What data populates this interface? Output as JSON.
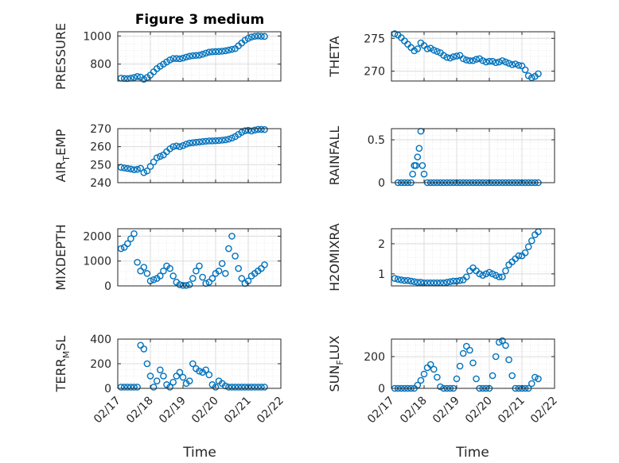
{
  "figure": {
    "title": "Figure 3 medium"
  },
  "colors": {
    "marker": "#0072BD",
    "grid": "#dcdcdc",
    "axis": "#262626"
  },
  "x_ticks": [
    "02/17",
    "02/18",
    "02/19",
    "02/20",
    "02/21",
    "02/22"
  ],
  "x_label": "Time",
  "chart_data": [
    {
      "type": "scatter",
      "marker": "circle",
      "ylabel": "PRESSURE",
      "ylim": [
        680,
        1030
      ],
      "yticks": [
        800,
        1000
      ],
      "xlim": [
        0,
        5
      ],
      "grid": true,
      "x": [
        0.1,
        0.2,
        0.3,
        0.4,
        0.5,
        0.6,
        0.7,
        0.8,
        0.9,
        1.0,
        1.1,
        1.2,
        1.3,
        1.4,
        1.5,
        1.6,
        1.7,
        1.8,
        1.9,
        2.0,
        2.1,
        2.2,
        2.3,
        2.4,
        2.5,
        2.6,
        2.7,
        2.8,
        2.9,
        3.0,
        3.1,
        3.2,
        3.3,
        3.4,
        3.5,
        3.6,
        3.7,
        3.8,
        3.9,
        4.0,
        4.1,
        4.2,
        4.3,
        4.4,
        4.5
      ],
      "y": [
        700,
        698,
        697,
        700,
        705,
        712,
        708,
        692,
        705,
        722,
        745,
        768,
        785,
        800,
        815,
        830,
        840,
        840,
        838,
        843,
        850,
        856,
        860,
        862,
        864,
        870,
        878,
        885,
        888,
        889,
        890,
        892,
        895,
        900,
        905,
        910,
        930,
        950,
        970,
        983,
        993,
        998,
        1000,
        998,
        997
      ]
    },
    {
      "type": "scatter",
      "marker": "circle",
      "ylabel": "THETA",
      "ylim": [
        268.5,
        276
      ],
      "yticks": [
        270,
        275
      ],
      "xlim": [
        0,
        5
      ],
      "grid": true,
      "x": [
        0.1,
        0.2,
        0.3,
        0.4,
        0.5,
        0.6,
        0.7,
        0.8,
        0.9,
        1.0,
        1.1,
        1.2,
        1.3,
        1.4,
        1.5,
        1.6,
        1.7,
        1.8,
        1.9,
        2.0,
        2.1,
        2.2,
        2.3,
        2.4,
        2.5,
        2.6,
        2.7,
        2.8,
        2.9,
        3.0,
        3.1,
        3.2,
        3.3,
        3.4,
        3.5,
        3.6,
        3.7,
        3.8,
        3.9,
        4.0,
        4.1,
        4.2,
        4.3,
        4.4,
        4.5
      ],
      "y": [
        275.7,
        275.5,
        275.1,
        274.6,
        274.1,
        273.6,
        273.1,
        273.4,
        274.3,
        273.9,
        273.4,
        273.5,
        273.2,
        273.0,
        272.8,
        272.4,
        272.1,
        272.0,
        272.2,
        272.3,
        272.4,
        271.9,
        271.7,
        271.6,
        271.6,
        271.8,
        271.9,
        271.6,
        271.4,
        271.5,
        271.5,
        271.3,
        271.4,
        271.6,
        271.4,
        271.2,
        271.0,
        271.1,
        270.9,
        270.8,
        270.2,
        269.3,
        269.0,
        269.2,
        269.6
      ]
    },
    {
      "type": "scatter",
      "marker": "circle",
      "ylabel": "AIR_TEMP",
      "ylim": [
        240,
        270
      ],
      "yticks": [
        240,
        250,
        260,
        270
      ],
      "xlim": [
        0,
        5
      ],
      "grid": true,
      "x": [
        0.1,
        0.2,
        0.3,
        0.4,
        0.5,
        0.6,
        0.7,
        0.8,
        0.9,
        1.0,
        1.1,
        1.2,
        1.3,
        1.4,
        1.5,
        1.6,
        1.7,
        1.8,
        1.9,
        2.0,
        2.1,
        2.2,
        2.3,
        2.4,
        2.5,
        2.6,
        2.7,
        2.8,
        2.9,
        3.0,
        3.1,
        3.2,
        3.3,
        3.4,
        3.5,
        3.6,
        3.7,
        3.8,
        3.9,
        4.0,
        4.1,
        4.2,
        4.3,
        4.4,
        4.5
      ],
      "y": [
        248.5,
        248.2,
        247.9,
        247.6,
        247.2,
        247.4,
        248.0,
        245.6,
        246.5,
        249.0,
        251.5,
        253.8,
        254.6,
        255.4,
        257.2,
        258.8,
        260.0,
        260.4,
        260.0,
        260.6,
        261.4,
        262.0,
        262.2,
        262.4,
        262.6,
        262.8,
        263.0,
        263.2,
        263.2,
        263.3,
        263.4,
        263.6,
        263.8,
        264.2,
        264.8,
        265.6,
        266.8,
        268.0,
        268.8,
        269.1,
        268.7,
        269.2,
        269.6,
        269.6,
        269.5
      ]
    },
    {
      "type": "scatter",
      "marker": "circle",
      "ylabel": "RAINFALL",
      "ylim": [
        0,
        0.63
      ],
      "yticks": [
        0,
        0.5
      ],
      "xlim": [
        0,
        5
      ],
      "grid": true,
      "x": [
        0.2,
        0.3,
        0.4,
        0.5,
        0.6,
        0.65,
        0.7,
        0.75,
        0.8,
        0.85,
        0.9,
        0.95,
        1.0,
        1.1,
        1.2,
        1.3,
        1.4,
        1.5,
        1.6,
        1.7,
        1.8,
        1.9,
        2.0,
        2.1,
        2.2,
        2.3,
        2.4,
        2.5,
        2.6,
        2.7,
        2.8,
        2.9,
        3.0,
        3.1,
        3.2,
        3.3,
        3.4,
        3.5,
        3.6,
        3.7,
        3.8,
        3.9,
        4.0,
        4.1,
        4.2,
        4.3,
        4.4,
        4.5
      ],
      "y": [
        0,
        0,
        0,
        0,
        0,
        0.1,
        0.2,
        0.2,
        0.3,
        0.4,
        0.6,
        0.2,
        0.1,
        0,
        0,
        0,
        0,
        0,
        0,
        0,
        0,
        0,
        0,
        0,
        0,
        0,
        0,
        0,
        0,
        0,
        0,
        0,
        0,
        0,
        0,
        0,
        0,
        0,
        0,
        0,
        0,
        0,
        0,
        0,
        0,
        0,
        0,
        0
      ]
    },
    {
      "type": "scatter",
      "marker": "circle",
      "ylabel": "MIXDEPTH",
      "ylim": [
        0,
        2300
      ],
      "yticks": [
        0,
        1000,
        2000
      ],
      "xlim": [
        0,
        5
      ],
      "grid": true,
      "x": [
        0.1,
        0.2,
        0.3,
        0.4,
        0.5,
        0.6,
        0.7,
        0.8,
        0.9,
        1.0,
        1.1,
        1.2,
        1.3,
        1.4,
        1.5,
        1.6,
        1.7,
        1.8,
        1.9,
        2.0,
        2.1,
        2.2,
        2.3,
        2.4,
        2.5,
        2.6,
        2.7,
        2.8,
        2.9,
        3.0,
        3.1,
        3.2,
        3.3,
        3.4,
        3.5,
        3.6,
        3.7,
        3.8,
        3.9,
        4.0,
        4.1,
        4.2,
        4.3,
        4.4,
        4.5
      ],
      "y": [
        1500,
        1550,
        1700,
        1900,
        2100,
        950,
        600,
        750,
        500,
        200,
        250,
        300,
        400,
        600,
        800,
        700,
        400,
        150,
        50,
        20,
        20,
        50,
        300,
        600,
        800,
        350,
        100,
        150,
        300,
        500,
        600,
        900,
        500,
        1500,
        2000,
        1200,
        700,
        300,
        100,
        200,
        400,
        500,
        600,
        700,
        850
      ]
    },
    {
      "type": "scatter",
      "marker": "circle",
      "ylabel": "H2OMIXRA",
      "ylim": [
        0.6,
        2.5
      ],
      "yticks": [
        1,
        2
      ],
      "xlim": [
        0,
        5
      ],
      "grid": true,
      "x": [
        0.1,
        0.2,
        0.3,
        0.4,
        0.5,
        0.6,
        0.7,
        0.8,
        0.9,
        1.0,
        1.1,
        1.2,
        1.3,
        1.4,
        1.5,
        1.6,
        1.7,
        1.8,
        1.9,
        2.0,
        2.1,
        2.2,
        2.3,
        2.4,
        2.5,
        2.6,
        2.7,
        2.8,
        2.9,
        3.0,
        3.1,
        3.2,
        3.3,
        3.4,
        3.5,
        3.6,
        3.7,
        3.8,
        3.9,
        4.0,
        4.1,
        4.2,
        4.3,
        4.4,
        4.5
      ],
      "y": [
        0.85,
        0.82,
        0.8,
        0.78,
        0.78,
        0.76,
        0.74,
        0.72,
        0.72,
        0.7,
        0.7,
        0.7,
        0.7,
        0.7,
        0.7,
        0.7,
        0.72,
        0.74,
        0.76,
        0.76,
        0.78,
        0.8,
        0.9,
        1.1,
        1.2,
        1.1,
        1.0,
        0.95,
        1.0,
        1.05,
        1.0,
        0.95,
        0.9,
        0.9,
        1.1,
        1.3,
        1.4,
        1.5,
        1.6,
        1.6,
        1.7,
        1.9,
        2.1,
        2.3,
        2.4
      ]
    },
    {
      "type": "scatter",
      "marker": "circle",
      "ylabel": "TERR_MSL",
      "ylim": [
        0,
        400
      ],
      "yticks": [
        0,
        200,
        400
      ],
      "xlim": [
        0,
        5
      ],
      "grid": true,
      "x": [
        0.1,
        0.2,
        0.3,
        0.4,
        0.5,
        0.6,
        0.7,
        0.8,
        0.9,
        1.0,
        1.1,
        1.2,
        1.3,
        1.4,
        1.5,
        1.6,
        1.7,
        1.8,
        1.9,
        2.0,
        2.1,
        2.2,
        2.3,
        2.4,
        2.5,
        2.6,
        2.7,
        2.8,
        2.9,
        3.0,
        3.1,
        3.2,
        3.3,
        3.4,
        3.5,
        3.6,
        3.7,
        3.8,
        3.9,
        4.0,
        4.1,
        4.2,
        4.3,
        4.4,
        4.5
      ],
      "y": [
        10,
        10,
        10,
        10,
        10,
        10,
        350,
        320,
        200,
        100,
        10,
        60,
        150,
        100,
        30,
        10,
        50,
        100,
        130,
        90,
        40,
        60,
        200,
        160,
        140,
        130,
        150,
        110,
        30,
        10,
        60,
        40,
        20,
        10,
        10,
        10,
        10,
        10,
        10,
        10,
        10,
        10,
        10,
        10,
        10
      ]
    },
    {
      "type": "scatter",
      "marker": "circle",
      "ylabel": "SUN_FLUX",
      "ylim": [
        0,
        310
      ],
      "yticks": [
        0,
        200
      ],
      "xlim": [
        0,
        5
      ],
      "grid": true,
      "x": [
        0.1,
        0.2,
        0.3,
        0.4,
        0.5,
        0.6,
        0.7,
        0.8,
        0.9,
        1.0,
        1.1,
        1.2,
        1.3,
        1.4,
        1.5,
        1.6,
        1.7,
        1.8,
        1.9,
        2.0,
        2.1,
        2.2,
        2.3,
        2.4,
        2.5,
        2.6,
        2.7,
        2.8,
        2.9,
        3.0,
        3.1,
        3.2,
        3.3,
        3.4,
        3.5,
        3.6,
        3.7,
        3.8,
        3.9,
        4.0,
        4.1,
        4.2,
        4.3,
        4.4,
        4.5
      ],
      "y": [
        0,
        0,
        0,
        0,
        0,
        0,
        0,
        20,
        50,
        90,
        130,
        150,
        120,
        70,
        10,
        0,
        0,
        0,
        0,
        60,
        140,
        220,
        265,
        240,
        160,
        60,
        0,
        0,
        0,
        0,
        80,
        200,
        290,
        300,
        270,
        180,
        80,
        0,
        0,
        0,
        0,
        0,
        30,
        70,
        60
      ]
    }
  ]
}
